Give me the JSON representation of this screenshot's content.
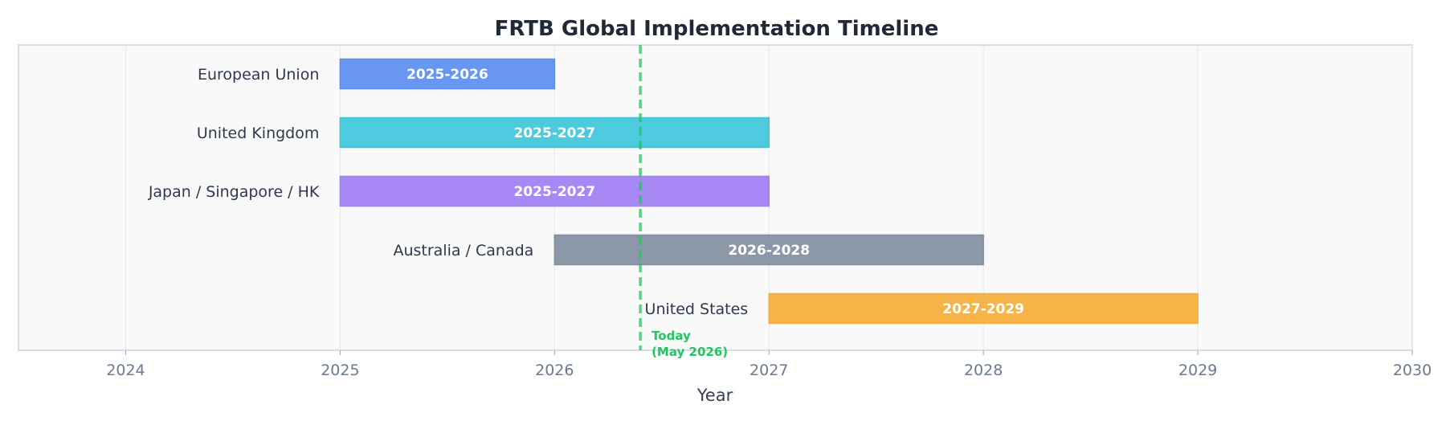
{
  "chart_data": {
    "type": "gantt",
    "title": "FRTB Global Implementation Timeline",
    "xlabel": "Year",
    "xlim": [
      2023.5,
      2030
    ],
    "x_ticks": [
      2024,
      2025,
      2026,
      2027,
      2028,
      2029,
      2030
    ],
    "grid": true,
    "tasks": [
      {
        "label": "European Union",
        "start": 2025,
        "end": 2026,
        "bar_label": "2025-2026",
        "color": "#5b8def"
      },
      {
        "label": "United Kingdom",
        "start": 2025,
        "end": 2027,
        "bar_label": "2025-2027",
        "color": "#3fc5dc"
      },
      {
        "label": "Japan / Singapore / HK",
        "start": 2025,
        "end": 2027,
        "bar_label": "2025-2027",
        "color": "#a07ef4"
      },
      {
        "label": "Australia / Canada",
        "start": 2026,
        "end": 2028,
        "bar_label": "2026-2028",
        "color": "#828ea0"
      },
      {
        "label": "United States",
        "start": 2027,
        "end": 2029,
        "bar_label": "2027-2029",
        "color": "#f4ad38"
      }
    ],
    "today_marker": {
      "x": 2026.4,
      "label_line1": "Today",
      "label_line2": "(May 2026)",
      "color": "#22c55e"
    }
  }
}
